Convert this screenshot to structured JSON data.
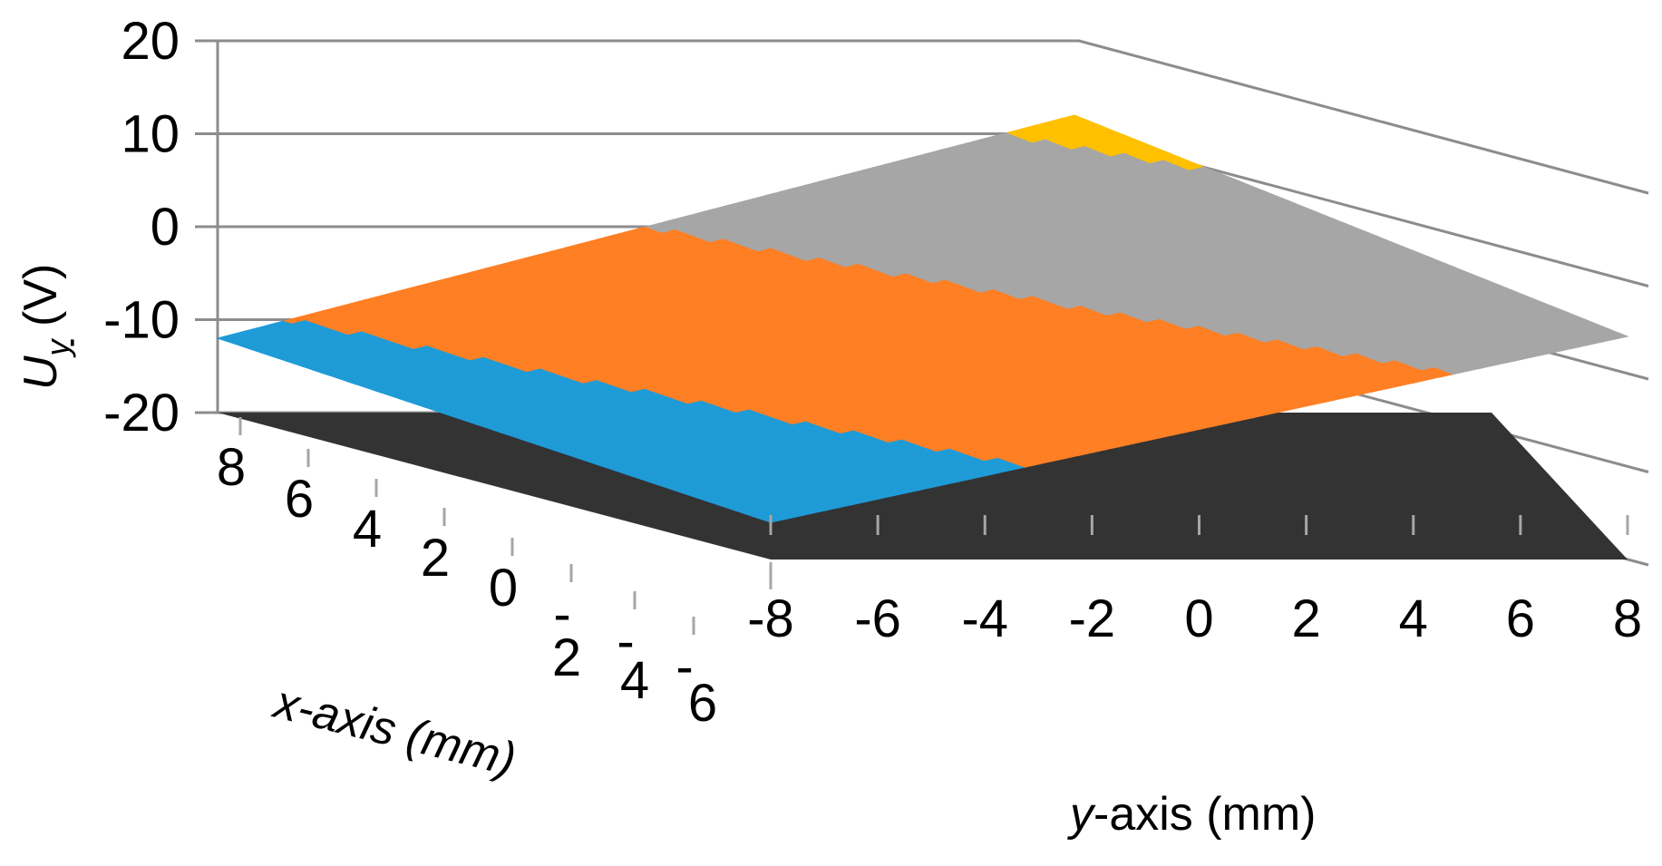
{
  "chart_data": {
    "type": "surface",
    "zlabel": "U_y (V)",
    "zlabel_main": "U",
    "zlabel_sub": "y",
    "zlabel_unit": " (V)",
    "xlabel": "x-axis (mm)",
    "xlabel_var": "x",
    "xlabel_rest": "-axis (mm)",
    "ylabel": "y-axis (mm)",
    "ylabel_var": "y",
    "ylabel_rest": "-axis (mm)",
    "zlim": [
      -20,
      20
    ],
    "xlim": [
      -8,
      8
    ],
    "ylim": [
      -8,
      8
    ],
    "z_ticks": [
      "20",
      "10",
      "0",
      "-10",
      "-20"
    ],
    "x_ticks": [
      "8",
      "6",
      "4",
      "2",
      "0",
      "-",
      "-",
      "-"
    ],
    "x_ticks_second_line": [
      "2",
      "4",
      "6"
    ],
    "y_ticks": [
      "-8",
      "-6",
      "-4",
      "-2",
      "0",
      "2",
      "4",
      "6",
      "8"
    ],
    "surface": {
      "description_points": [
        {
          "x": 8,
          "y": -8,
          "z": -12
        },
        {
          "x": -8,
          "y": -8,
          "z": -16
        },
        {
          "x": 8,
          "y": 8,
          "z": 12
        },
        {
          "x": -8,
          "y": 8,
          "z": 4
        }
      ]
    },
    "bands": [
      {
        "range": "-20 to -10",
        "color": "#1f9bd7"
      },
      {
        "range": "-10 to 0",
        "color": "#fe7f24"
      },
      {
        "range": "0 to 10",
        "color": "#a6a6a6"
      },
      {
        "range": "10 to 20",
        "color": "#ffc000"
      }
    ],
    "floor_color": "#333333",
    "gridline_color": "#8c8c8c"
  }
}
